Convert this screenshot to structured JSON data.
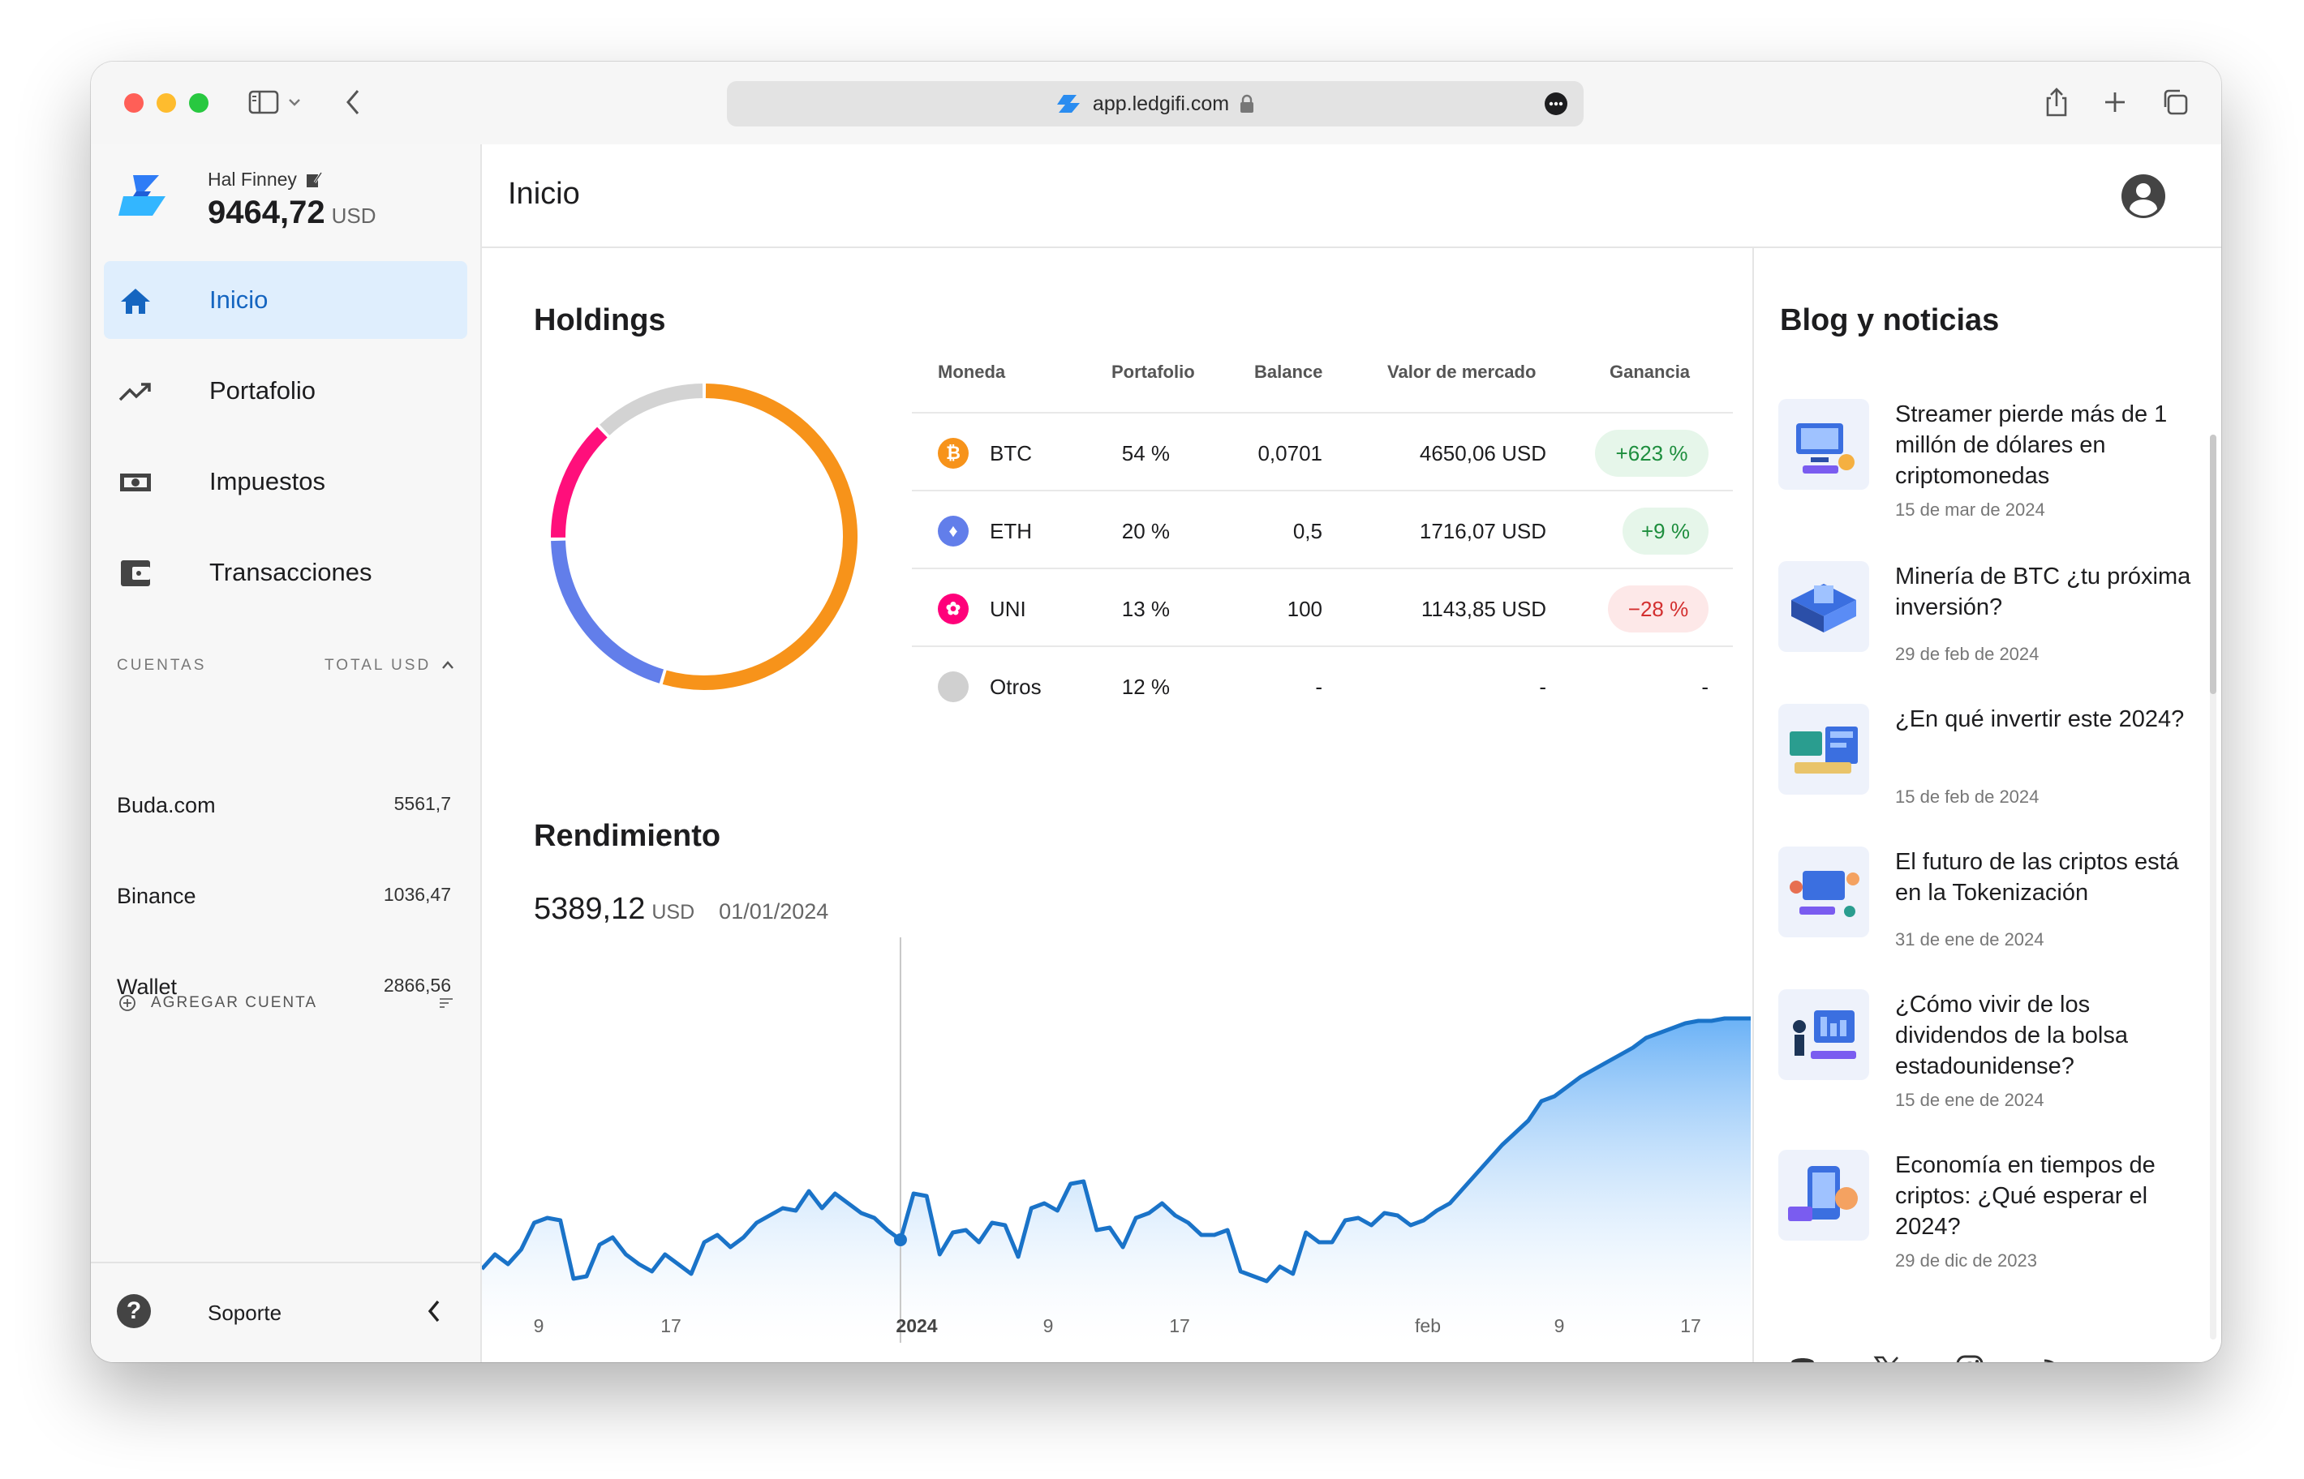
{
  "browser": {
    "url": "app.ledgifi.com"
  },
  "user": {
    "name": "Hal Finney",
    "balance": "9464,72",
    "currency": "USD"
  },
  "nav": [
    {
      "label": "Inicio",
      "icon": "home-icon",
      "active": true
    },
    {
      "label": "Portafolio",
      "icon": "trending-up-icon",
      "active": false
    },
    {
      "label": "Impuestos",
      "icon": "money-icon",
      "active": false
    },
    {
      "label": "Transacciones",
      "icon": "wallet-icon",
      "active": false
    }
  ],
  "accounts": {
    "header_left": "CUENTAS",
    "header_right": "TOTAL USD",
    "items": [
      {
        "name": "Buda.com",
        "value": "5561,7"
      },
      {
        "name": "Binance",
        "value": "1036,47"
      },
      {
        "name": "Wallet",
        "value": "2866,56"
      }
    ],
    "add_label": "AGREGAR CUENTA"
  },
  "support_label": "Soporte",
  "page_title": "Inicio",
  "holdings": {
    "title": "Holdings",
    "columns": [
      "Moneda",
      "Portafolio",
      "Balance",
      "Valor de mercado",
      "Ganancia"
    ],
    "rows": [
      {
        "coin": "BTC",
        "portfolio": "54 %",
        "balance": "0,0701",
        "market_value": "4650,06 USD",
        "gain": "+623 %",
        "color": "#f7931a"
      },
      {
        "coin": "ETH",
        "portfolio": "20 %",
        "balance": "0,5",
        "market_value": "1716,07 USD",
        "gain": "+9 %",
        "color": "#627eea"
      },
      {
        "coin": "UNI",
        "portfolio": "13 %",
        "balance": "100",
        "market_value": "1143,85 USD",
        "gain": "−28 %",
        "color": "#ff007a"
      },
      {
        "coin": "Otros",
        "portfolio": "12 %",
        "balance": "-",
        "market_value": "-",
        "gain": "-",
        "color": "#d0d0d0"
      }
    ]
  },
  "donut": {
    "segments": [
      {
        "label": "BTC",
        "percent": 54,
        "color": "#f7931a"
      },
      {
        "label": "ETH",
        "percent": 20,
        "color": "#627eea"
      },
      {
        "label": "UNI",
        "percent": 13,
        "color": "#ff0f7b"
      },
      {
        "label": "Otros",
        "percent": 12,
        "color": "#d3d3d3"
      }
    ]
  },
  "performance": {
    "title": "Rendimiento",
    "value": "5389,12",
    "currency": "USD",
    "date": "01/01/2024"
  },
  "chart_data": {
    "type": "area",
    "title": "",
    "x_ticks": [
      "9",
      "17",
      "2024",
      "9",
      "17",
      "feb",
      "9",
      "17"
    ],
    "y_units": "USD",
    "hover": {
      "date": "01/01/2024",
      "value": 5389.12
    },
    "values": [
      5270,
      5330,
      5290,
      5350,
      5460,
      5480,
      5470,
      5230,
      5240,
      5370,
      5400,
      5330,
      5290,
      5260,
      5330,
      5290,
      5250,
      5380,
      5410,
      5360,
      5400,
      5460,
      5490,
      5520,
      5510,
      5590,
      5520,
      5580,
      5540,
      5500,
      5480,
      5430,
      5390,
      5580,
      5570,
      5330,
      5420,
      5430,
      5380,
      5460,
      5450,
      5320,
      5520,
      5540,
      5510,
      5620,
      5630,
      5430,
      5440,
      5360,
      5480,
      5500,
      5540,
      5490,
      5460,
      5410,
      5410,
      5430,
      5260,
      5240,
      5220,
      5280,
      5250,
      5420,
      5380,
      5380,
      5470,
      5480,
      5450,
      5500,
      5490,
      5450,
      5470,
      5510,
      5540,
      5600,
      5660,
      5720,
      5780,
      5830,
      5880,
      5960,
      5980,
      6020,
      6060,
      6090,
      6120,
      6150,
      6180,
      6220,
      6240,
      6260,
      6280,
      6290,
      6290,
      6300,
      6300,
      6300
    ]
  },
  "blog": {
    "title": "Blog y noticias",
    "items": [
      {
        "title": "Streamer pierde más de 1 millón de dólares en criptomonedas",
        "date": "15 de mar de 2024"
      },
      {
        "title": "Minería de BTC ¿tu próxima inversión?",
        "date": "29 de feb de 2024"
      },
      {
        "title": "¿En qué invertir este 2024?",
        "date": "15 de feb de 2024"
      },
      {
        "title": "El futuro de las criptos está en la Tokenización",
        "date": "31 de ene de 2024"
      },
      {
        "title": "¿Cómo vivir de los dividendos de la bolsa estadounidense?",
        "date": "15 de ene de 2024"
      },
      {
        "title": "Economía en tiempos de criptos: ¿Qué esperar el 2024?",
        "date": "29 de dic de 2023"
      }
    ]
  },
  "social": [
    "discord-icon",
    "x-icon",
    "instagram-icon",
    "rss-icon"
  ]
}
